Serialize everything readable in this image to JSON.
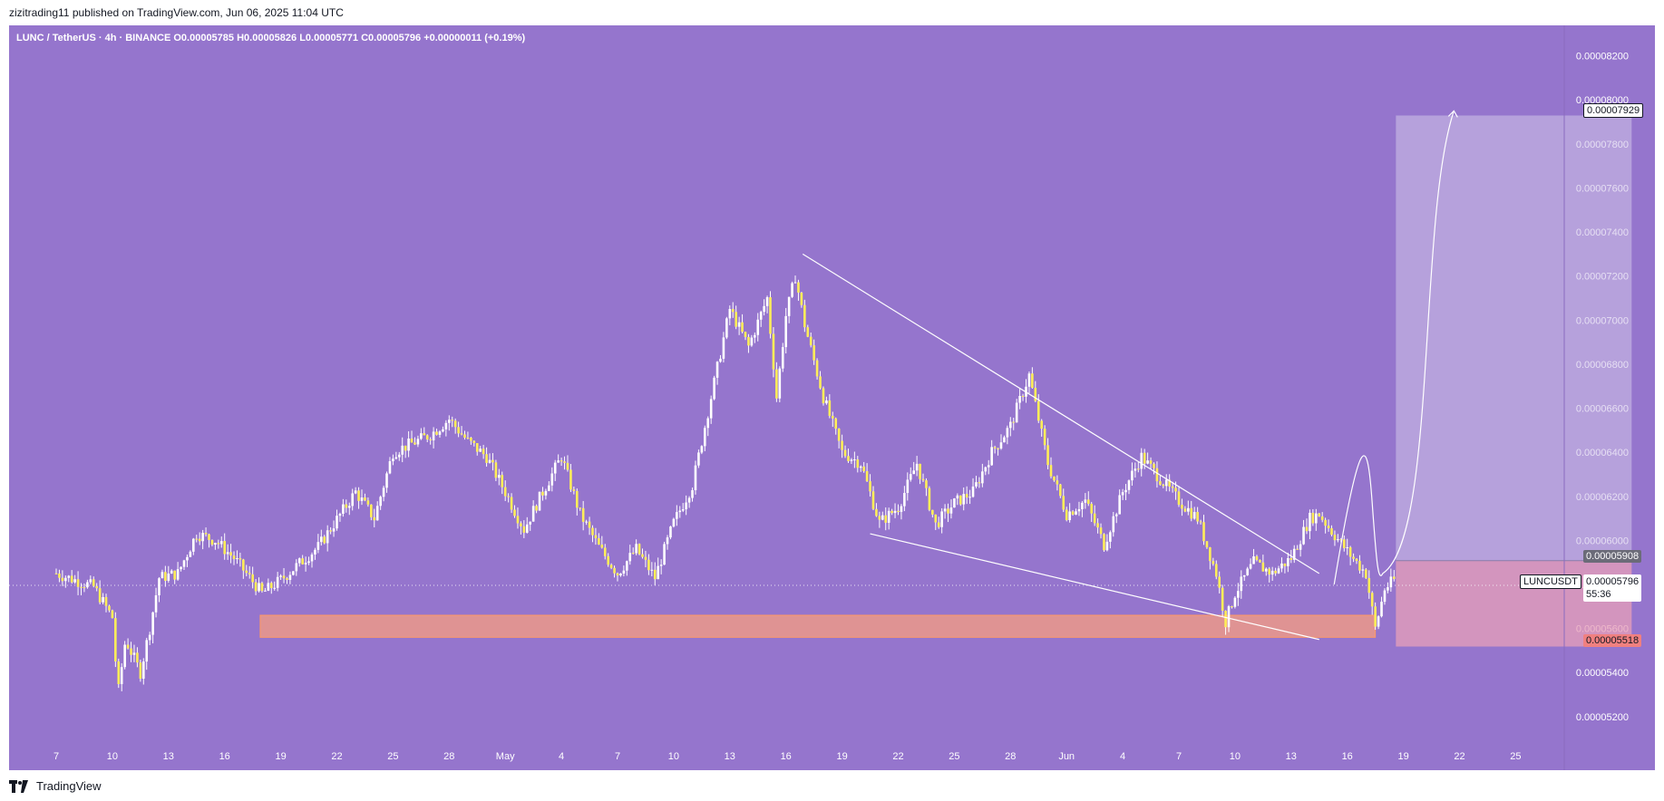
{
  "header": {
    "published": "zizitrading11 published on TradingView.com, Jun 06, 2025 11:04 UTC"
  },
  "legend": {
    "text": "LUNC / TetherUS · 4h · BINANCE  O0.00005785  H0.00005826  L0.00005771  C0.00005796  +0.00000011 (+0.19%)"
  },
  "footer": {
    "brand": "TradingView"
  },
  "colors": {
    "background": "#9575cd",
    "candle": "#ffee58",
    "wick": "#ffffff",
    "support_zone": "#ffa07a",
    "target_zone": "#d1c4e9",
    "stop_zone": "#e8a0b8",
    "trendline": "#ffffff"
  },
  "price_tags": {
    "target": "0.00007929",
    "entry": "0.00005908",
    "last": "0.00005796",
    "countdown": "55:36",
    "stop": "0.00005518",
    "symbol": "LUNCUSDT"
  },
  "chart_data": {
    "type": "candlestick",
    "symbol": "LUNC / TetherUS",
    "interval": "4h",
    "exchange": "BINANCE",
    "ylim": [
      5.08e-05,
      8.33e-05
    ],
    "y_ticks": [
      "0.00008200",
      "0.00008000",
      "0.00007800",
      "0.00007600",
      "0.00007400",
      "0.00007200",
      "0.00007000",
      "0.00006800",
      "0.00006600",
      "0.00006400",
      "0.00006200",
      "0.00006000",
      "0.00005800",
      "0.00005600",
      "0.00005400",
      "0.00005200"
    ],
    "x_ticks": [
      "7",
      "10",
      "13",
      "16",
      "19",
      "22",
      "25",
      "28",
      "May",
      "4",
      "7",
      "10",
      "13",
      "16",
      "19",
      "22",
      "25",
      "28",
      "Jun",
      "4",
      "7",
      "10",
      "13",
      "16",
      "19",
      "22",
      "25"
    ],
    "price_path": [
      [
        0,
        5.85e-05
      ],
      [
        1,
        5.82e-05
      ],
      [
        2,
        5.79e-05
      ],
      [
        3,
        5.65e-05
      ],
      [
        3.3,
        5.3e-05
      ],
      [
        3.7,
        5.55e-05
      ],
      [
        4.5,
        5.4e-05
      ],
      [
        5,
        5.6e-05
      ],
      [
        5.5,
        5.83e-05
      ],
      [
        6.5,
        5.85e-05
      ],
      [
        7.5,
        6.03e-05
      ],
      [
        8.5,
        6e-05
      ],
      [
        9.5,
        5.92e-05
      ],
      [
        11,
        5.76e-05
      ],
      [
        12,
        5.82e-05
      ],
      [
        14,
        5.97e-05
      ],
      [
        16,
        6.22e-05
      ],
      [
        17,
        6.1e-05
      ],
      [
        18,
        6.4e-05
      ],
      [
        20,
        6.48e-05
      ],
      [
        21,
        6.55e-05
      ],
      [
        22,
        6.45e-05
      ],
      [
        23,
        6.38e-05
      ],
      [
        24,
        6.22e-05
      ],
      [
        25,
        6.05e-05
      ],
      [
        26,
        6.22e-05
      ],
      [
        27,
        6.38e-05
      ],
      [
        28,
        6.12e-05
      ],
      [
        29,
        5.97e-05
      ],
      [
        30,
        5.85e-05
      ],
      [
        31,
        5.96e-05
      ],
      [
        32,
        5.83e-05
      ],
      [
        33,
        6.08e-05
      ],
      [
        34,
        6.25e-05
      ],
      [
        35,
        6.65e-05
      ],
      [
        36,
        7.05e-05
      ],
      [
        37,
        6.88e-05
      ],
      [
        38,
        7.1e-05
      ],
      [
        38.5,
        6.65e-05
      ],
      [
        39,
        7.02e-05
      ],
      [
        39.5,
        7.2e-05
      ],
      [
        40,
        6.98e-05
      ],
      [
        41,
        6.65e-05
      ],
      [
        42,
        6.4e-05
      ],
      [
        43,
        6.35e-05
      ],
      [
        44,
        6.08e-05
      ],
      [
        45,
        6.15e-05
      ],
      [
        46,
        6.35e-05
      ],
      [
        47,
        6.07e-05
      ],
      [
        48,
        6.17e-05
      ],
      [
        49,
        6.22e-05
      ],
      [
        50,
        6.4e-05
      ],
      [
        51,
        6.52e-05
      ],
      [
        52,
        6.75e-05
      ],
      [
        53,
        6.35e-05
      ],
      [
        54,
        6.12e-05
      ],
      [
        55,
        6.18e-05
      ],
      [
        56,
        5.98e-05
      ],
      [
        57,
        6.22e-05
      ],
      [
        58,
        6.38e-05
      ],
      [
        59,
        6.28e-05
      ],
      [
        60,
        6.18e-05
      ],
      [
        61,
        6.1e-05
      ],
      [
        62,
        5.85e-05
      ],
      [
        62.5,
        5.63e-05
      ],
      [
        63,
        5.76e-05
      ],
      [
        64,
        5.9e-05
      ],
      [
        65,
        5.85e-05
      ],
      [
        66,
        5.92e-05
      ],
      [
        67,
        6.1e-05
      ],
      [
        67.5,
        6.12e-05
      ],
      [
        68,
        6.06e-05
      ],
      [
        69,
        5.95e-05
      ],
      [
        70,
        5.85e-05
      ],
      [
        70.5,
        5.6e-05
      ],
      [
        71,
        5.78e-05
      ],
      [
        71.5,
        5.82e-05
      ]
    ],
    "support_zone": {
      "x_range": [
        10.9,
        70.5
      ],
      "y_range": [
        5.56e-05,
        5.66e-05
      ]
    },
    "trendline_upper": {
      "from": [
        39.9,
        7.3e-05
      ],
      "to": [
        67.5,
        5.85e-05
      ]
    },
    "trendline_lower": {
      "from": [
        43.5,
        6.03e-05
      ],
      "to": [
        67.5,
        5.55e-05
      ]
    },
    "projection": {
      "path": [
        [
          68.3,
          5.8e-05
        ],
        [
          69.6,
          6.3e-05
        ],
        [
          70.9,
          5.85e-05
        ],
        [
          74.7,
          7.95e-05
        ]
      ]
    },
    "position": {
      "x_range": [
        71.6,
        84.2
      ],
      "entry": 5.908e-05,
      "target": 7.929e-05,
      "stop": 5.518e-05
    },
    "last_price": 5.796e-05
  }
}
